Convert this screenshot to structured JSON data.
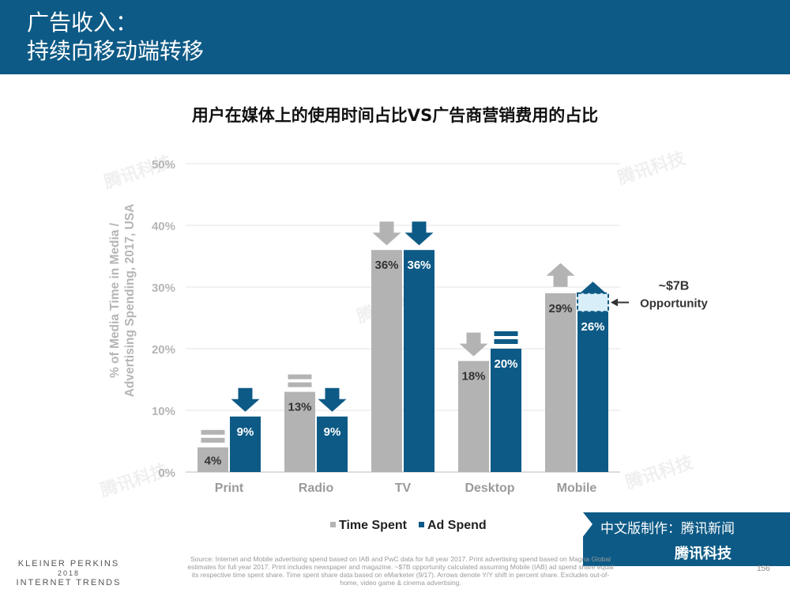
{
  "header": {
    "line1": "广告收入：",
    "line2": "持续向移动端转移"
  },
  "chart_title": "用户在媒体上的使用时间占比VS广告商营销费用的占比",
  "chart_data": {
    "type": "bar",
    "categories": [
      "Print",
      "Radio",
      "TV",
      "Desktop",
      "Mobile"
    ],
    "series": [
      {
        "name": "Time Spent",
        "values": [
          4,
          13,
          36,
          18,
          29
        ],
        "labels": [
          "4%",
          "13%",
          "36%",
          "18%",
          "29%"
        ],
        "color": "#b3b3b3",
        "trends": [
          "flat",
          "flat",
          "down",
          "down",
          "up"
        ]
      },
      {
        "name": "Ad Spend",
        "values": [
          9,
          9,
          36,
          20,
          26
        ],
        "labels": [
          "9%",
          "9%",
          "36%",
          "20%",
          "26%"
        ],
        "color": "#0d5a86",
        "trends": [
          "down",
          "down",
          "down",
          "flat",
          "up"
        ]
      }
    ],
    "ylabel_lines": [
      "% of Media Time in Media /",
      "Advertising Spending, 2017, USA"
    ],
    "yticks": [
      "0%",
      "10%",
      "20%",
      "30%",
      "40%",
      "50%"
    ],
    "ylim": [
      0,
      50
    ],
    "grid": true,
    "legend_position": "bottom",
    "opportunity": {
      "from": 26,
      "to": 29,
      "label_top": "~$7B",
      "label_bottom": "Opportunity"
    }
  },
  "source_text": "Source: Internet and Mobile advertising spend based on IAB and PwC data for full year 2017. Print advertising spend based on Magna Global estimates for full year 2017. Print includes newspaper and magazine. ~$7B opportunity calculated assuming Mobile (IAB) ad spend share equal its respective time spent share. Time spent share data based on eMarketer (9/17). Arrows denote Y/Y shift in percent share. Excludes out-of-home, video game & cinema advertising.",
  "brand": {
    "name": "KLEINER PERKINS",
    "year": "2018",
    "report": "INTERNET TRENDS"
  },
  "page_number": "156",
  "credit": {
    "line1": "中文版制作：腾讯新闻",
    "line2": "腾讯科技"
  },
  "watermark": "腾讯科技"
}
